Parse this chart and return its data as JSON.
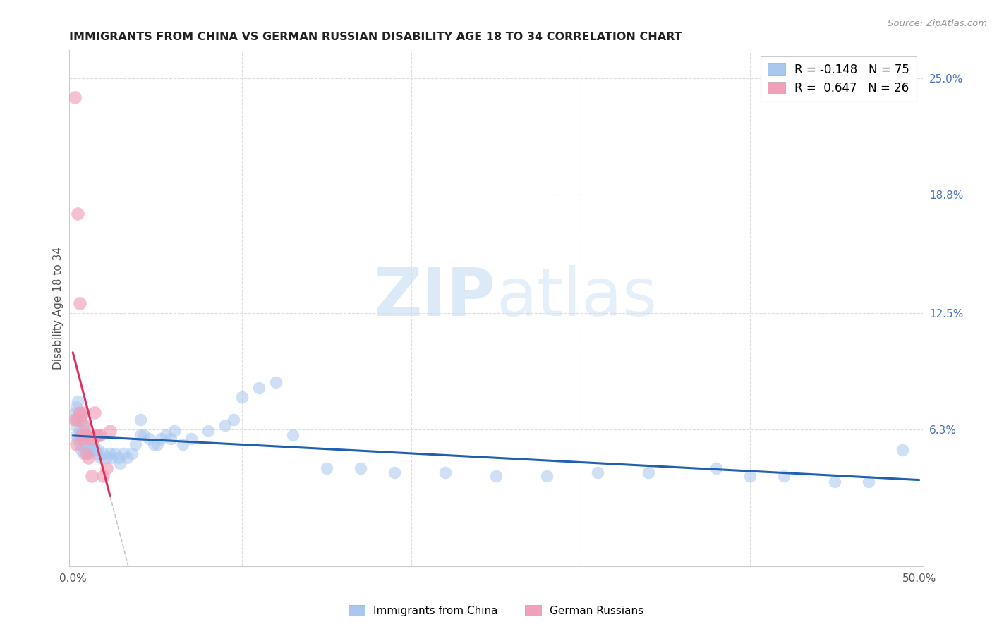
{
  "title": "IMMIGRANTS FROM CHINA VS GERMAN RUSSIAN DISABILITY AGE 18 TO 34 CORRELATION CHART",
  "source": "Source: ZipAtlas.com",
  "ylabel": "Disability Age 18 to 34",
  "xlim": [
    -0.002,
    0.502
  ],
  "ylim": [
    -0.01,
    0.265
  ],
  "yticks_right": [
    0.063,
    0.125,
    0.188,
    0.25
  ],
  "yticklabels_right": [
    "6.3%",
    "12.5%",
    "18.8%",
    "25.0%"
  ],
  "blue_R": -0.148,
  "blue_N": 75,
  "pink_R": 0.647,
  "pink_N": 26,
  "legend_label_blue": "Immigrants from China",
  "legend_label_pink": "German Russians",
  "watermark_zip": "ZIP",
  "watermark_atlas": "atlas",
  "blue_color": "#A8C8F0",
  "pink_color": "#F0A0B8",
  "blue_line_color": "#2060B0",
  "pink_line_color": "#E03060",
  "pink_dash_color": "#E0A0B0",
  "grid_color": "#DDDDDD",
  "blue_x": [
    0.001,
    0.001,
    0.002,
    0.002,
    0.002,
    0.003,
    0.003,
    0.003,
    0.004,
    0.004,
    0.004,
    0.005,
    0.005,
    0.005,
    0.006,
    0.006,
    0.006,
    0.007,
    0.007,
    0.008,
    0.008,
    0.009,
    0.009,
    0.01,
    0.01,
    0.011,
    0.012,
    0.013,
    0.014,
    0.015,
    0.016,
    0.018,
    0.02,
    0.022,
    0.023,
    0.025,
    0.027,
    0.028,
    0.03,
    0.032,
    0.035,
    0.037,
    0.04,
    0.04,
    0.042,
    0.045,
    0.048,
    0.05,
    0.052,
    0.055,
    0.058,
    0.06,
    0.065,
    0.07,
    0.08,
    0.09,
    0.095,
    0.1,
    0.11,
    0.12,
    0.13,
    0.15,
    0.17,
    0.19,
    0.22,
    0.25,
    0.28,
    0.31,
    0.34,
    0.38,
    0.4,
    0.42,
    0.45,
    0.47,
    0.49
  ],
  "blue_y": [
    0.072,
    0.068,
    0.075,
    0.065,
    0.06,
    0.078,
    0.068,
    0.058,
    0.072,
    0.062,
    0.055,
    0.068,
    0.06,
    0.052,
    0.065,
    0.058,
    0.05,
    0.062,
    0.055,
    0.06,
    0.052,
    0.058,
    0.05,
    0.06,
    0.052,
    0.055,
    0.055,
    0.052,
    0.05,
    0.052,
    0.048,
    0.05,
    0.048,
    0.05,
    0.048,
    0.05,
    0.048,
    0.045,
    0.05,
    0.048,
    0.05,
    0.055,
    0.068,
    0.06,
    0.06,
    0.058,
    0.055,
    0.055,
    0.058,
    0.06,
    0.058,
    0.062,
    0.055,
    0.058,
    0.062,
    0.065,
    0.068,
    0.08,
    0.085,
    0.088,
    0.06,
    0.042,
    0.042,
    0.04,
    0.04,
    0.038,
    0.038,
    0.04,
    0.04,
    0.042,
    0.038,
    0.038,
    0.035,
    0.035,
    0.052
  ],
  "pink_x": [
    0.001,
    0.001,
    0.002,
    0.003,
    0.003,
    0.004,
    0.004,
    0.005,
    0.005,
    0.006,
    0.006,
    0.007,
    0.007,
    0.008,
    0.008,
    0.009,
    0.01,
    0.011,
    0.012,
    0.013,
    0.014,
    0.015,
    0.016,
    0.018,
    0.02,
    0.022
  ],
  "pink_y": [
    0.068,
    0.24,
    0.055,
    0.068,
    0.178,
    0.072,
    0.13,
    0.07,
    0.06,
    0.058,
    0.072,
    0.065,
    0.06,
    0.06,
    0.05,
    0.048,
    0.058,
    0.038,
    0.058,
    0.072,
    0.06,
    0.06,
    0.06,
    0.038,
    0.042,
    0.062
  ]
}
